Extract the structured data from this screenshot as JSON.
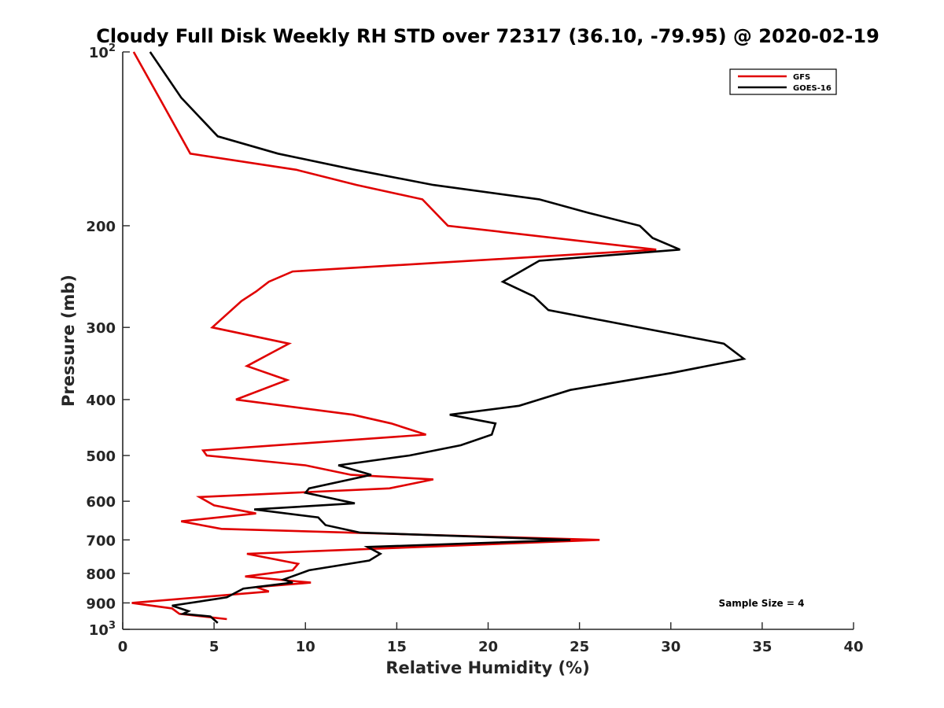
{
  "chart_data": {
    "type": "line",
    "title": "Cloudy Full Disk Weekly RH STD over 72317 (36.10, -79.95) @ 2020-02-19",
    "xlabel": "Relative Humidity (%)",
    "ylabel": "Pressure (mb)",
    "xlim": [
      0,
      40
    ],
    "ylim": [
      100,
      1000
    ],
    "y_scale": "log",
    "y_reversed": true,
    "x_ticks": [
      "0",
      "5",
      "10",
      "15",
      "20",
      "25",
      "30",
      "35",
      "40"
    ],
    "y_ticks": [
      {
        "value": 100,
        "base": "10",
        "exp": "2"
      },
      {
        "value": 200,
        "label": "200"
      },
      {
        "value": 300,
        "label": "300"
      },
      {
        "value": 400,
        "label": "400"
      },
      {
        "value": 500,
        "label": "500"
      },
      {
        "value": 600,
        "label": "600"
      },
      {
        "value": 700,
        "label": "700"
      },
      {
        "value": 800,
        "label": "800"
      },
      {
        "value": 900,
        "label": "900"
      },
      {
        "value": 1000,
        "base": "10",
        "exp": "3"
      }
    ],
    "grid": false,
    "legend_position": "top-right",
    "annotation": "Sample Size = 4",
    "series": [
      {
        "name": "GFS",
        "color": "#e00000",
        "x": [
          0.6,
          2.0,
          3.7,
          9.5,
          12.8,
          16.4,
          17.8,
          29.2,
          9.3,
          8.0,
          7.3,
          6.5,
          4.9,
          9.1,
          8.3,
          6.8,
          9.0,
          6.2,
          12.6,
          14.7,
          16.6,
          4.4,
          4.6,
          10.0,
          12.5,
          17.0,
          14.6,
          4.2,
          5.0,
          7.3,
          3.2,
          5.4,
          26.1,
          6.8,
          9.6,
          9.3,
          6.7,
          10.3,
          7.3,
          8.0,
          0.5,
          2.7,
          3.1,
          5.7
        ],
        "y": [
          100,
          120,
          150,
          160,
          170,
          180,
          200,
          220,
          240,
          250,
          260,
          270,
          300,
          320,
          330,
          350,
          370,
          400,
          425,
          440,
          460,
          490,
          500,
          520,
          540,
          550,
          570,
          590,
          610,
          630,
          650,
          670,
          700,
          740,
          770,
          790,
          810,
          830,
          845,
          860,
          900,
          920,
          940,
          960
        ]
      },
      {
        "name": "GOES-16",
        "color": "#000000",
        "x": [
          1.5,
          3.2,
          5.2,
          8.5,
          12.7,
          17.0,
          22.8,
          25.5,
          28.3,
          29.0,
          30.5,
          22.8,
          20.8,
          22.5,
          23.3,
          32.9,
          34.0,
          30.0,
          24.5,
          21.7,
          17.9,
          20.4,
          20.2,
          18.5,
          15.7,
          11.8,
          13.6,
          10.2,
          10.0,
          12.7,
          7.2,
          10.7,
          11.1,
          13.0,
          24.5,
          13.4,
          14.1,
          13.5,
          10.2,
          8.8,
          9.3,
          6.6,
          5.7,
          2.7,
          3.6,
          3.3,
          4.8,
          5.2
        ],
        "y": [
          100,
          120,
          140,
          150,
          160,
          170,
          180,
          190,
          200,
          210,
          220,
          230,
          250,
          265,
          280,
          320,
          340,
          360,
          385,
          410,
          425,
          440,
          460,
          480,
          500,
          520,
          540,
          570,
          580,
          605,
          620,
          640,
          660,
          680,
          700,
          720,
          740,
          760,
          790,
          820,
          830,
          850,
          880,
          910,
          930,
          940,
          950,
          975
        ]
      }
    ]
  }
}
